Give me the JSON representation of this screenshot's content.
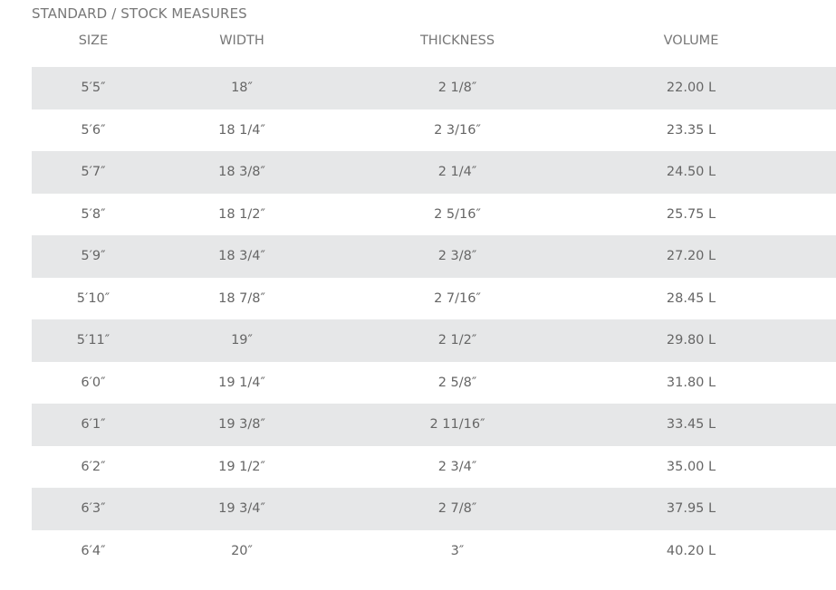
{
  "title": "STANDARD / STOCK MEASURES",
  "columns": [
    "SIZE",
    "WIDTH",
    "THICKNESS",
    "VOLUME"
  ],
  "rows": [
    [
      "5′5″",
      "18″",
      "2 1/8″",
      "22.00 L"
    ],
    [
      "5′6″",
      "18 1/4″",
      "2 3/16″",
      "23.35 L"
    ],
    [
      "5′7″",
      "18 3/8″",
      "2 1/4″",
      "24.50 L"
    ],
    [
      "5′8″",
      "18 1/2″",
      "2 5/16″",
      "25.75 L"
    ],
    [
      "5′9″",
      "18 3/4″",
      "2 3/8″",
      "27.20 L"
    ],
    [
      "5′10″",
      "18 7/8″",
      "2 7/16″",
      "28.45 L"
    ],
    [
      "5′11″",
      "19″",
      "2 1/2″",
      "29.80 L"
    ],
    [
      "6′0″",
      "19 1/4″",
      "2 5/8″",
      "31.80 L"
    ],
    [
      "6′1″",
      "19 3/8″",
      "2 11/16″",
      "33.45 L"
    ],
    [
      "6′2″",
      "19 1/2″",
      "2 3/4″",
      "35.00 L"
    ],
    [
      "6′3″",
      "19 3/4″",
      "2 7/8″",
      "37.95 L"
    ],
    [
      "6′4″",
      "20″",
      "3″",
      "40.20 L"
    ]
  ],
  "colors": {
    "stripe": "#e6e7e8",
    "text": "#666666"
  }
}
